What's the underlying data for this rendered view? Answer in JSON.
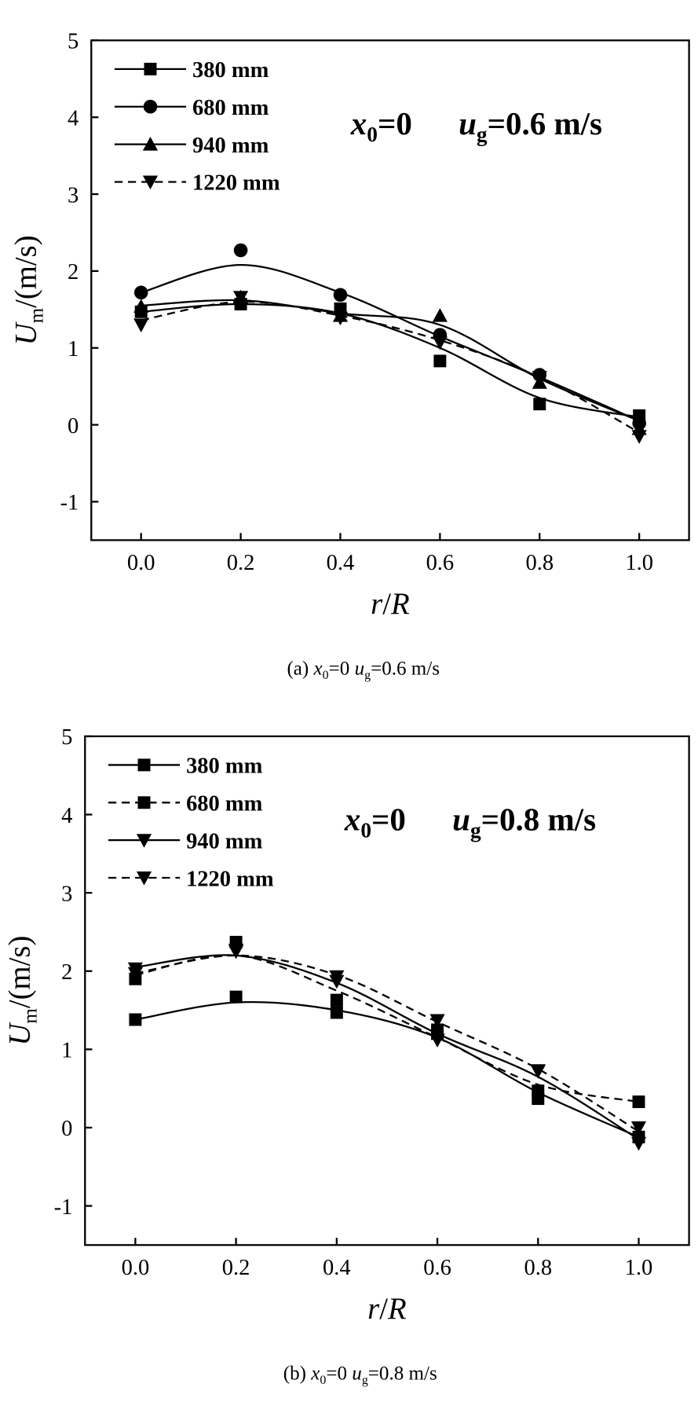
{
  "chart_data": [
    {
      "type": "line",
      "panel_caption": {
        "prefix": "(a) ",
        "x_var": "x",
        "x_sub": "0",
        "x_val": "=0 ",
        "u_var": "u",
        "u_sub": "g",
        "u_val": "=0.6 m/s"
      },
      "annotation": {
        "x_var": "x",
        "x_sub": "0",
        "x_val": "=0",
        "u_var": "u",
        "u_sub": "g",
        "u_val": "=0.6 m/s"
      },
      "xlabel": {
        "a": "r",
        "b": "/",
        "c": "R"
      },
      "ylabel": {
        "var": "U",
        "sub": "m",
        "unit": "/(m/s)"
      },
      "xlim": [
        -0.1,
        1.1
      ],
      "ylim": [
        -1.5,
        5
      ],
      "xticks": [
        "0.0",
        "0.2",
        "0.4",
        "0.6",
        "0.8",
        "1.0"
      ],
      "yticks": [
        "-1",
        "0",
        "1",
        "2",
        "3",
        "4",
        "5"
      ],
      "legend_position": "top-left",
      "x": [
        0.0,
        0.2,
        0.4,
        0.6,
        0.8,
        1.0
      ],
      "series": [
        {
          "name": "380 mm",
          "marker": "square",
          "dash": false,
          "values": [
            1.47,
            1.57,
            1.51,
            0.83,
            0.27,
            0.12
          ],
          "fit": [
            1.47,
            1.57,
            1.45,
            1.0,
            0.35,
            0.1
          ]
        },
        {
          "name": "680 mm",
          "marker": "circle",
          "dash": false,
          "values": [
            1.72,
            2.27,
            1.69,
            1.17,
            0.65,
            0.02
          ],
          "fit": [
            1.72,
            2.08,
            1.72,
            1.15,
            0.62,
            0.05
          ]
        },
        {
          "name": "940 mm",
          "marker": "triangle-up",
          "dash": false,
          "values": [
            1.54,
            1.66,
            1.42,
            1.42,
            0.55,
            -0.05
          ],
          "fit": [
            1.55,
            1.62,
            1.45,
            1.3,
            0.6,
            0.05
          ]
        },
        {
          "name": "1220 mm",
          "marker": "triangle-down",
          "dash": true,
          "values": [
            1.3,
            1.66,
            1.39,
            1.07,
            0.62,
            -0.15
          ],
          "fit": [
            1.36,
            1.6,
            1.42,
            1.1,
            0.62,
            -0.1
          ]
        }
      ]
    },
    {
      "type": "line",
      "panel_caption": {
        "prefix": "(b) ",
        "x_var": "x",
        "x_sub": "0",
        "x_val": "=0 ",
        "u_var": "u",
        "u_sub": "g",
        "u_val": "=0.8 m/s"
      },
      "annotation": {
        "x_var": "x",
        "x_sub": "0",
        "x_val": "=0",
        "u_var": "u",
        "u_sub": "g",
        "u_val": "=0.8 m/s"
      },
      "xlabel": {
        "a": "r",
        "b": "/",
        "c": "R"
      },
      "ylabel": {
        "var": "U",
        "sub": "m",
        "unit": "/(m/s)"
      },
      "xlim": [
        -0.1,
        1.1
      ],
      "ylim": [
        -1.5,
        5
      ],
      "xticks": [
        "0.0",
        "0.2",
        "0.4",
        "0.6",
        "0.8",
        "1.0"
      ],
      "yticks": [
        "-1",
        "0",
        "1",
        "2",
        "3",
        "4",
        "5"
      ],
      "legend_position": "top-left",
      "x": [
        0.0,
        0.2,
        0.4,
        0.6,
        0.8,
        1.0
      ],
      "series": [
        {
          "name": "380 mm",
          "marker": "square",
          "dash": false,
          "values": [
            1.38,
            1.67,
            1.47,
            1.2,
            0.37,
            -0.12
          ],
          "fit": [
            1.38,
            1.6,
            1.5,
            1.15,
            0.45,
            -0.12
          ]
        },
        {
          "name": "680 mm",
          "marker": "square",
          "dash": true,
          "values": [
            1.9,
            2.37,
            1.63,
            1.25,
            0.47,
            0.33
          ],
          "fit": [
            1.95,
            2.2,
            1.75,
            1.15,
            0.55,
            0.33
          ]
        },
        {
          "name": "940 mm",
          "marker": "triangle-down",
          "dash": false,
          "values": [
            2.03,
            2.27,
            1.87,
            1.12,
            0.72,
            0.0
          ],
          "fit": [
            2.05,
            2.2,
            1.85,
            1.2,
            0.65,
            -0.15
          ]
        },
        {
          "name": "1220 mm",
          "marker": "triangle-down",
          "dash": true,
          "values": [
            1.97,
            2.25,
            1.93,
            1.37,
            0.73,
            -0.2
          ],
          "fit": [
            1.97,
            2.2,
            1.95,
            1.35,
            0.75,
            -0.05
          ]
        }
      ]
    }
  ]
}
